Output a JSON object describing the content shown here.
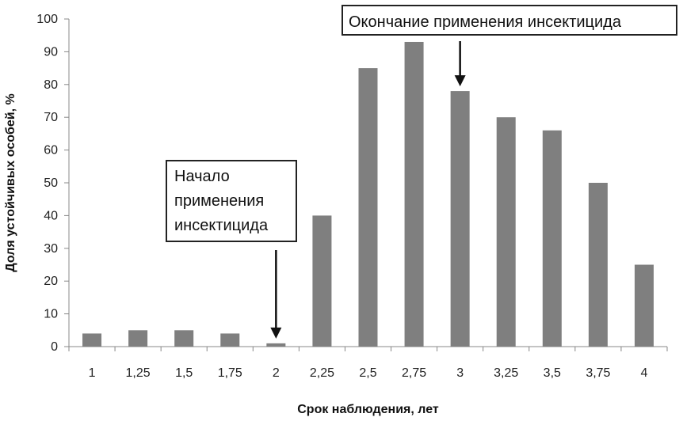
{
  "chart_data": {
    "type": "bar",
    "xlabel": "Срок наблюдения, лет",
    "ylabel": "Доля устойчивых особей, %",
    "ylim": [
      0,
      100
    ],
    "yticks": [
      "0",
      "10",
      "20",
      "30",
      "40",
      "50",
      "60",
      "70",
      "80",
      "90",
      "100"
    ],
    "categories": [
      "1",
      "1,25",
      "1,5",
      "1,75",
      "2",
      "2,25",
      "2,5",
      "2,75",
      "3",
      "3,25",
      "3,5",
      "3,75",
      "4"
    ],
    "values": [
      4,
      5,
      5,
      4,
      1,
      40,
      85,
      93,
      78,
      70,
      66,
      50,
      25
    ],
    "bar_color": "#7f7f7f",
    "grid": false,
    "annotations": [
      {
        "lines": [
          "Начало",
          "применения",
          "инсектицида"
        ],
        "target_category": "2"
      },
      {
        "lines": [
          "Окончание применения инсектицида"
        ],
        "target_category": "3"
      }
    ]
  }
}
